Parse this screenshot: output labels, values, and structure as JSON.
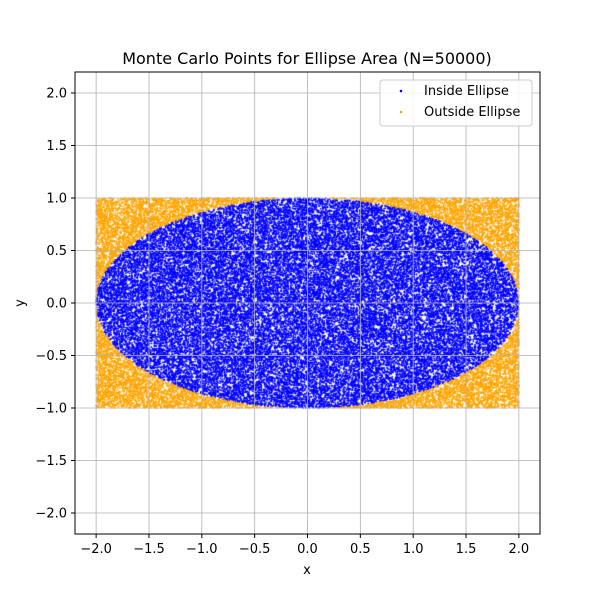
{
  "chart_data": {
    "type": "scatter",
    "title": "Monte Carlo Points for Ellipse Area (N=50000)",
    "xlabel": "x",
    "ylabel": "y",
    "xlim": [
      -2.2,
      2.2
    ],
    "ylim": [
      -2.2,
      2.2
    ],
    "x_ticks": [
      -2.0,
      -1.5,
      -1.0,
      -0.5,
      0.0,
      0.5,
      1.0,
      1.5,
      2.0
    ],
    "y_ticks": [
      -2.0,
      -1.5,
      -1.0,
      -0.5,
      0.0,
      0.5,
      1.0,
      1.5,
      2.0
    ],
    "x_tick_labels": [
      "−2.0",
      "−1.5",
      "−1.0",
      "−0.5",
      "0.0",
      "0.5",
      "1.0",
      "1.5",
      "2.0"
    ],
    "y_tick_labels": [
      "−2.0",
      "−1.5",
      "−1.0",
      "−0.5",
      "0.0",
      "0.5",
      "1.0",
      "1.5",
      "2.0"
    ],
    "grid": true,
    "legend_position": "top-right",
    "sampling_region": {
      "x": [
        -2.0,
        2.0
      ],
      "y": [
        -1.0,
        1.0
      ]
    },
    "ellipse": {
      "semi_axis_x": 2.0,
      "semi_axis_y": 1.0,
      "center": [
        0,
        0
      ]
    },
    "n_points": 50000,
    "series": [
      {
        "name": "Inside Ellipse",
        "color": "#0000ff"
      },
      {
        "name": "Outside Ellipse",
        "color": "#ffa500"
      }
    ]
  }
}
